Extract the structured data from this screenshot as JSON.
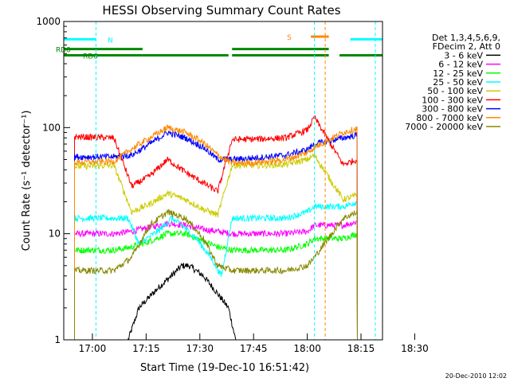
{
  "chart_data": {
    "type": "line",
    "title": "HESSI Observing Summary Count Rates",
    "xlabel": "Start Time (19-Dec-10 16:51:42)",
    "ylabel": "Count Rate (s⁻¹ detector⁻¹)",
    "yscale": "log",
    "ylim": [
      1,
      1000
    ],
    "xlim_minutes": [
      16.0,
      105.0
    ],
    "x_ticks": [
      "17:00",
      "17:15",
      "17:30",
      "17:45",
      "18:00",
      "18:15",
      "18:30"
    ],
    "y_ticks": [
      "1",
      "10",
      "100",
      "1000"
    ],
    "legend_header": [
      "Det 1,3,4,5,6,9,",
      "FDecim 2, Att 0"
    ],
    "legend_position": "right",
    "timestamp": "20-Dec-2010 12:02",
    "series": [
      {
        "name": "3 - 6 keV",
        "color": "#000000",
        "points": [
          [
            34,
            1.0
          ],
          [
            37,
            2.0
          ],
          [
            42,
            3.0
          ],
          [
            46,
            4.0
          ],
          [
            49,
            5.0
          ],
          [
            51,
            5.0
          ],
          [
            55,
            4.0
          ],
          [
            58,
            3.0
          ],
          [
            62,
            2.0
          ],
          [
            64,
            1.0
          ]
        ]
      },
      {
        "name": "6 - 12 keV",
        "color": "#ff00ff",
        "points": [
          [
            19,
            10
          ],
          [
            30,
            10
          ],
          [
            35,
            10.5
          ],
          [
            40,
            11.5
          ],
          [
            45,
            12.5
          ],
          [
            50,
            12
          ],
          [
            55,
            11
          ],
          [
            59,
            10.5
          ],
          [
            63,
            10
          ],
          [
            70,
            10
          ],
          [
            78,
            10
          ],
          [
            84,
            10.5
          ],
          [
            86,
            12
          ],
          [
            94,
            12
          ],
          [
            98,
            13
          ]
        ]
      },
      {
        "name": "12 - 25 keV",
        "color": "#00ff00",
        "points": [
          [
            19,
            7
          ],
          [
            30,
            7
          ],
          [
            35,
            7.5
          ],
          [
            40,
            8.5
          ],
          [
            45,
            10
          ],
          [
            50,
            10
          ],
          [
            55,
            8.5
          ],
          [
            59,
            7.5
          ],
          [
            63,
            7
          ],
          [
            70,
            7
          ],
          [
            78,
            7
          ],
          [
            84,
            8
          ],
          [
            86,
            9
          ],
          [
            94,
            9
          ],
          [
            98,
            10
          ]
        ]
      },
      {
        "name": "25 - 50 keV",
        "color": "#00ffff",
        "points": [
          [
            19,
            14
          ],
          [
            30,
            14
          ],
          [
            34,
            14
          ],
          [
            37,
            8
          ],
          [
            43,
            11
          ],
          [
            46,
            14
          ],
          [
            49,
            12
          ],
          [
            53,
            9
          ],
          [
            57,
            6
          ],
          [
            60,
            4
          ],
          [
            63,
            14
          ],
          [
            70,
            14
          ],
          [
            78,
            14
          ],
          [
            84,
            16
          ],
          [
            86,
            18
          ],
          [
            94,
            18
          ],
          [
            98,
            20
          ]
        ]
      },
      {
        "name": "50 - 100 keV",
        "color": "#cccc00",
        "points": [
          [
            19,
            43
          ],
          [
            30,
            44
          ],
          [
            35,
            16
          ],
          [
            40,
            19
          ],
          [
            45,
            24
          ],
          [
            50,
            21
          ],
          [
            55,
            17
          ],
          [
            59,
            15
          ],
          [
            63,
            44
          ],
          [
            70,
            44
          ],
          [
            78,
            45
          ],
          [
            84,
            50
          ],
          [
            86,
            55
          ],
          [
            94,
            21
          ],
          [
            98,
            23
          ]
        ]
      },
      {
        "name": "100 - 300 keV",
        "color": "#ff0000",
        "points": [
          [
            19,
            82
          ],
          [
            30,
            80
          ],
          [
            35,
            28
          ],
          [
            40,
            35
          ],
          [
            45,
            50
          ],
          [
            50,
            38
          ],
          [
            55,
            30
          ],
          [
            59,
            25
          ],
          [
            63,
            77
          ],
          [
            70,
            78
          ],
          [
            78,
            80
          ],
          [
            84,
            95
          ],
          [
            86,
            125
          ],
          [
            94,
            45
          ],
          [
            98,
            50
          ]
        ]
      },
      {
        "name": "300 - 800 keV",
        "color": "#0000ff",
        "points": [
          [
            19,
            53
          ],
          [
            30,
            53
          ],
          [
            35,
            55
          ],
          [
            40,
            70
          ],
          [
            45,
            90
          ],
          [
            50,
            80
          ],
          [
            55,
            65
          ],
          [
            59,
            50
          ],
          [
            63,
            50
          ],
          [
            70,
            52
          ],
          [
            78,
            55
          ],
          [
            84,
            62
          ],
          [
            86,
            70
          ],
          [
            94,
            80
          ],
          [
            98,
            85
          ]
        ]
      },
      {
        "name": "800 - 7000 keV",
        "color": "#ff8800",
        "points": [
          [
            19,
            47
          ],
          [
            30,
            48
          ],
          [
            35,
            63
          ],
          [
            40,
            80
          ],
          [
            45,
            100
          ],
          [
            50,
            90
          ],
          [
            55,
            72
          ],
          [
            59,
            55
          ],
          [
            63,
            46
          ],
          [
            70,
            47
          ],
          [
            78,
            50
          ],
          [
            84,
            58
          ],
          [
            86,
            65
          ],
          [
            94,
            90
          ],
          [
            98,
            98
          ]
        ]
      },
      {
        "name": "7000 - 20000 keV",
        "color": "#888800",
        "points": [
          [
            19,
            4.5
          ],
          [
            30,
            4.5
          ],
          [
            35,
            6
          ],
          [
            40,
            12
          ],
          [
            45,
            16
          ],
          [
            50,
            14
          ],
          [
            55,
            9
          ],
          [
            59,
            5
          ],
          [
            63,
            4.5
          ],
          [
            70,
            4.5
          ],
          [
            78,
            4.5
          ],
          [
            84,
            5
          ],
          [
            86,
            6
          ],
          [
            94,
            14
          ],
          [
            98,
            16
          ]
        ]
      }
    ],
    "flags": [
      {
        "label": "RD0",
        "color": "#008800",
        "segments": [
          [
            16,
            38
          ],
          [
            63,
            90
          ]
        ]
      },
      {
        "label": "RD6",
        "color": "#008800",
        "segments": [
          [
            16,
            38
          ],
          [
            38,
            62
          ],
          [
            63,
            90
          ],
          [
            93,
            105
          ]
        ]
      },
      {
        "label": "N",
        "color": "#00ffff",
        "segments": [
          [
            16,
            25
          ],
          [
            96,
            105
          ]
        ]
      },
      {
        "label": "S",
        "color": "#ff8800",
        "segments": [
          [
            85,
            90
          ]
        ]
      }
    ]
  }
}
